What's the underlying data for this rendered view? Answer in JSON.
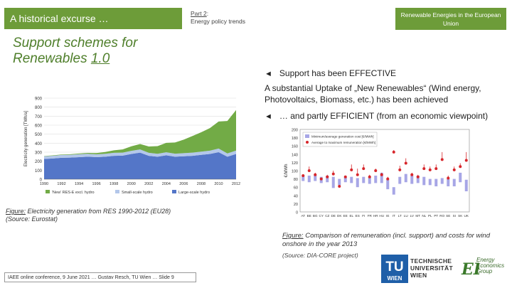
{
  "header": {
    "left_banner": "A historical excurse …",
    "part_label": "Part 2",
    "part_colon": ":",
    "part_subtitle": "Energy policy trends",
    "right_banner": "Renewable Energies in the European Union"
  },
  "slide_title": {
    "line1": "Support schemes for",
    "line2_prefix": "Renewables ",
    "line2_version": "1.0"
  },
  "bullets": {
    "arrow": "◄",
    "item1": "Support has been EFFECTIVE",
    "item1_sub": "A substantial Uptake of „New Renewables“ (Wind energy, Photovoltaics, Biomass, etc.) has been achieved",
    "item2": "… and partly EFFICIENT (from an economic viewpoint)"
  },
  "caption1": {
    "label": "Figure:",
    "text": " Electricity generation from RES 1990-2012 (EU28)",
    "source": "(Source: Eurostat)"
  },
  "caption2": {
    "label": "Figure:",
    "text": " Comparison of remuneration (incl. support) and costs for wind onshore in the year 2013",
    "source": "(Source: DIA-CORE project)"
  },
  "footer": {
    "text": "IAEE online conference, 9 June 2021 … Gustav Resch, TU Wien … Slide 9"
  },
  "logos": {
    "tu_line1": "TECHNISCHE",
    "tu_line2": "UNIVERSITÄT",
    "tu_line3": "WIEN",
    "tu_mark": "TU",
    "tu_wien": "WIEN",
    "eeg_line1": "Energy",
    "eeg_line2": "Economics",
    "eeg_line3": "Group",
    "eeg_mark": "EEG"
  },
  "colors": {
    "banner": "#6d9c39",
    "title": "#4f7f2b",
    "new_res": "#72ab46",
    "small_hydro": "#b3c7ea",
    "large_hydro": "#5476c8",
    "min_bar": "#a7a6e6",
    "avg_dot": "#d7262b"
  },
  "chart_data": [
    {
      "type": "area",
      "ylabel": "Electricity generation [TWh/a]",
      "ylim": [
        0,
        900
      ],
      "yticks": [
        0,
        100,
        200,
        300,
        400,
        500,
        600,
        700,
        800,
        900
      ],
      "x": [
        1990,
        1991,
        1992,
        1993,
        1994,
        1995,
        1996,
        1997,
        1998,
        1999,
        2000,
        2001,
        2002,
        2003,
        2004,
        2005,
        2006,
        2007,
        2008,
        2009,
        2010,
        2011,
        2012
      ],
      "xtick_labels": [
        "1990",
        "1992",
        "1994",
        "1996",
        "1998",
        "2000",
        "2002",
        "2004",
        "2006",
        "2008",
        "2010",
        "2012"
      ],
      "legend_position": "bottom",
      "stacked": true,
      "series": [
        {
          "name": "Large-scale hydro",
          "values": [
            225,
            230,
            238,
            240,
            245,
            250,
            245,
            250,
            260,
            262,
            280,
            295,
            260,
            250,
            265,
            250,
            255,
            260,
            270,
            280,
            300,
            250,
            280
          ]
        },
        {
          "name": "Small-scale hydro",
          "values": [
            30,
            30,
            31,
            31,
            32,
            32,
            31,
            32,
            33,
            33,
            35,
            36,
            33,
            32,
            34,
            33,
            34,
            35,
            36,
            37,
            40,
            36,
            38
          ]
        },
        {
          "name": "'New' RES-E excl. hydro",
          "values": [
            3,
            4,
            5,
            6,
            8,
            10,
            14,
            20,
            28,
            36,
            50,
            60,
            70,
            85,
            105,
            125,
            150,
            185,
            215,
            250,
            300,
            360,
            450
          ]
        }
      ]
    },
    {
      "type": "scatter",
      "ylabel": "€/MWh",
      "ylim": [
        0,
        200
      ],
      "yticks": [
        0,
        20,
        40,
        60,
        80,
        100,
        120,
        140,
        160,
        180,
        200
      ],
      "categories": [
        "AT",
        "BE",
        "BG",
        "CY",
        "CZ",
        "DE",
        "DK",
        "EE",
        "EL",
        "ES",
        "FI",
        "FR",
        "HR",
        "HU",
        "IE",
        "IT",
        "LT",
        "LU",
        "LV",
        "MT",
        "NL",
        "PL",
        "PT",
        "RO",
        "SE",
        "SI",
        "SK",
        "UK"
      ],
      "legend_position": "top-left",
      "series": [
        {
          "name": "Minimum/average generation cost [€/MWh]",
          "kind": "bar-range",
          "low": [
            75,
            72,
            75,
            70,
            72,
            58,
            65,
            72,
            70,
            60,
            70,
            68,
            70,
            70,
            55,
            42,
            68,
            72,
            68,
            70,
            65,
            65,
            62,
            68,
            62,
            62,
            72,
            50
          ],
          "high": [
            88,
            88,
            90,
            85,
            88,
            85,
            80,
            85,
            85,
            82,
            85,
            85,
            88,
            95,
            80,
            60,
            85,
            92,
            88,
            88,
            85,
            80,
            80,
            82,
            80,
            80,
            95,
            78
          ]
        },
        {
          "name": "Average to maximum remuneration [€/MWh]",
          "kind": "dot",
          "values": [
            88,
            100,
            90,
            80,
            85,
            92,
            62,
            85,
            102,
            90,
            105,
            85,
            100,
            90,
            80,
            145,
            102,
            118,
            90,
            85,
            105,
            102,
            105,
            127,
            82,
            102,
            110,
            125
          ],
          "upper": [
            88,
            110,
            95,
            80,
            90,
            100,
            62,
            85,
            115,
            105,
            115,
            90,
            105,
            95,
            85,
            150,
            112,
            130,
            95,
            90,
            115,
            110,
            115,
            145,
            88,
            110,
            118,
            145
          ]
        }
      ]
    }
  ]
}
